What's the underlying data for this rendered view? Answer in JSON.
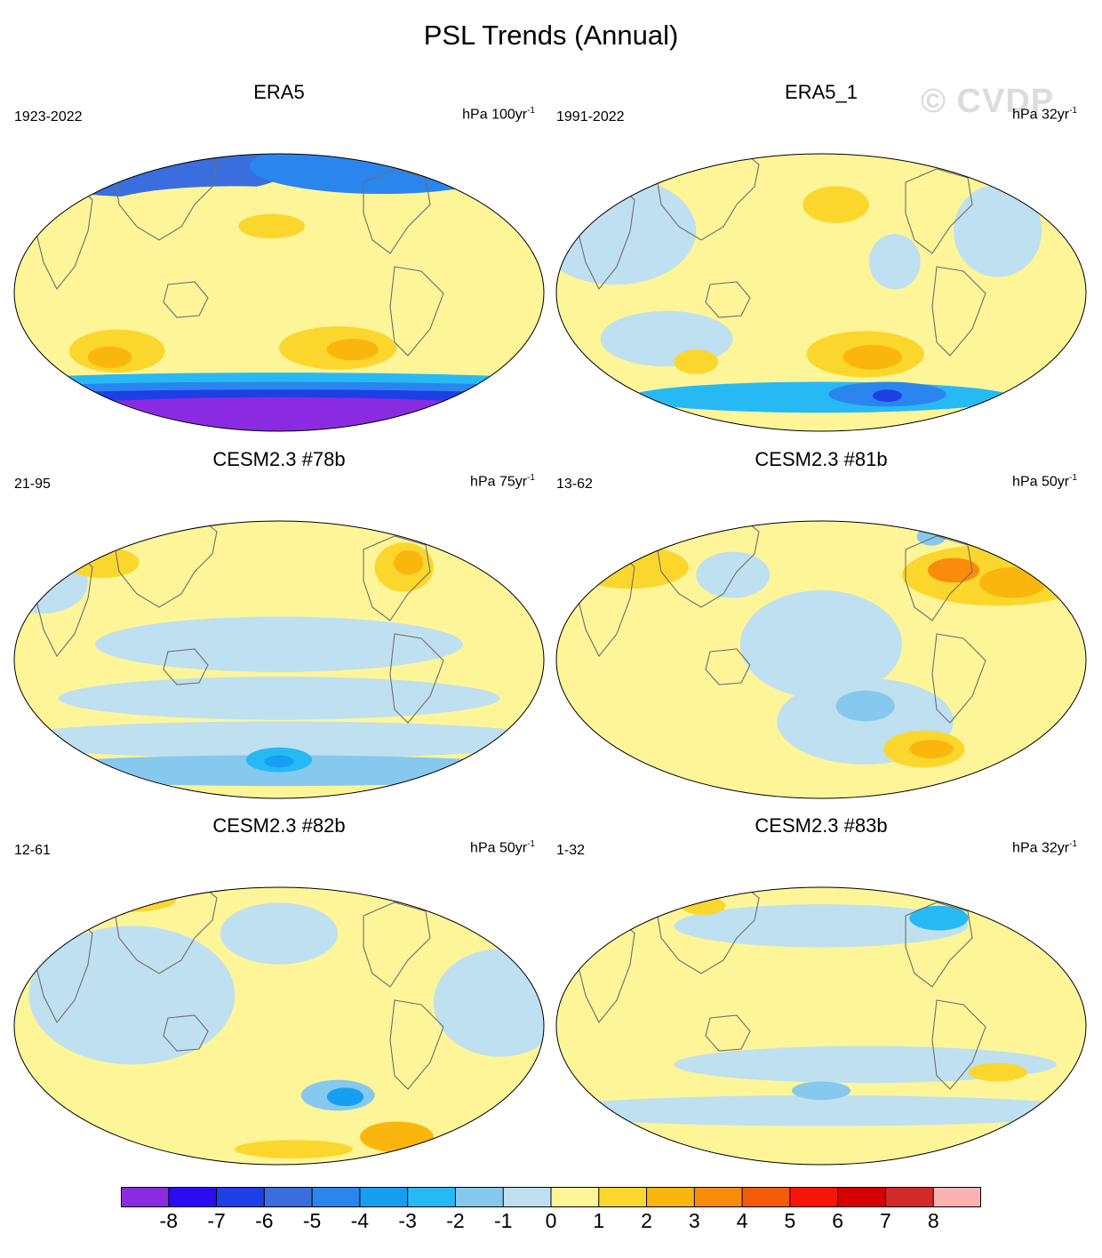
{
  "figure": {
    "title": "PSL Trends (Annual)",
    "watermark": "© CVDP"
  },
  "colors": {
    "land_outline": "#6e6e6e",
    "levels": [
      {
        "label": "-8",
        "color": "#8a2be2"
      },
      {
        "label": "-7",
        "color": "#2a0bf2"
      },
      {
        "label": "-6",
        "color": "#1f3fe6"
      },
      {
        "label": "-5",
        "color": "#3a6ede"
      },
      {
        "label": "-4",
        "color": "#2a86ee"
      },
      {
        "label": "-3",
        "color": "#169ff0"
      },
      {
        "label": "-2",
        "color": "#27b9f4"
      },
      {
        "label": "-1",
        "color": "#87c8ef"
      },
      {
        "label": "0",
        "color": "#bfe0f0"
      },
      {
        "label": "1",
        "color": "#fdf598"
      },
      {
        "label": "2",
        "color": "#fbd62d"
      },
      {
        "label": "3",
        "color": "#fbb60e"
      },
      {
        "label": "4",
        "color": "#fa8c0b"
      },
      {
        "label": "5",
        "color": "#f65b09"
      },
      {
        "label": "6",
        "color": "#fa1407"
      },
      {
        "label": "7",
        "color": "#d80000"
      },
      {
        "label": "8",
        "color": "#d22a2a"
      },
      {
        "label": "",
        "color": "#fbb2b2"
      }
    ]
  },
  "chart_data": {
    "type": "heatmap",
    "variable": "PSL",
    "colorbar_ticks": [
      "-8",
      "-7",
      "-6",
      "-5",
      "-4",
      "-3",
      "-2",
      "-1",
      "0",
      "1",
      "2",
      "3",
      "4",
      "5",
      "6",
      "7",
      "8"
    ],
    "panels": [
      {
        "title": "ERA5",
        "period": "1923-2022",
        "units": "hPa 100yr",
        "units_exp": "-1"
      },
      {
        "title": "ERA5_1",
        "period": "1991-2022",
        "units": "hPa 32yr",
        "units_exp": "-1"
      },
      {
        "title": "CESM2.3 #78b",
        "period": "21-95",
        "units": "hPa 75yr",
        "units_exp": "-1"
      },
      {
        "title": "CESM2.3 #81b",
        "period": "13-62",
        "units": "hPa 50yr",
        "units_exp": "-1"
      },
      {
        "title": "CESM2.3 #82b",
        "period": "12-61",
        "units": "hPa 50yr",
        "units_exp": "-1"
      },
      {
        "title": "CESM2.3 #83b",
        "period": "1-32",
        "units": "hPa 32yr",
        "units_exp": "-1"
      }
    ],
    "features": [
      [
        {
          "lon": 90,
          "lat": 82,
          "level": -5,
          "dlon": 200,
          "dlat": 20
        },
        {
          "lon": 250,
          "lat": 82,
          "level": -4,
          "dlon": 180,
          "dlat": 18
        },
        {
          "lon": 150,
          "lat": 55,
          "level": 1,
          "dlon": 180,
          "dlat": 14
        },
        {
          "lon": 175,
          "lat": 43,
          "level": 2,
          "dlon": 45,
          "dlat": 8
        },
        {
          "lon": 70,
          "lat": -38,
          "level": 2,
          "dlon": 65,
          "dlat": 14
        },
        {
          "lon": 65,
          "lat": -42,
          "level": 3,
          "dlon": 30,
          "dlat": 7
        },
        {
          "lon": 220,
          "lat": -36,
          "level": 2,
          "dlon": 80,
          "dlat": 14
        },
        {
          "lon": 230,
          "lat": -37,
          "level": 3,
          "dlon": 35,
          "dlat": 7
        },
        {
          "lon": 180,
          "lat": -58,
          "level": -2,
          "dlon": 380,
          "dlat": 6
        },
        {
          "lon": 180,
          "lat": -63,
          "level": -4,
          "dlon": 380,
          "dlat": 5
        },
        {
          "lon": 180,
          "lat": -68,
          "level": -6,
          "dlon": 380,
          "dlat": 5
        },
        {
          "lon": 180,
          "lat": -80,
          "level": -8,
          "dlon": 380,
          "dlat": 12
        }
      ],
      [
        {
          "lon": 40,
          "lat": 40,
          "level": 0,
          "dlon": 110,
          "dlat": 35
        },
        {
          "lon": 230,
          "lat": 20,
          "level": 0,
          "dlon": 35,
          "dlat": 18
        },
        {
          "lon": 300,
          "lat": 40,
          "level": 0,
          "dlon": 60,
          "dlat": 30
        },
        {
          "lon": 190,
          "lat": 57,
          "level": 2,
          "dlon": 45,
          "dlat": 12
        },
        {
          "lon": 75,
          "lat": -30,
          "level": 0,
          "dlon": 90,
          "dlat": 18
        },
        {
          "lon": 210,
          "lat": -40,
          "level": 2,
          "dlon": 80,
          "dlat": 15
        },
        {
          "lon": 215,
          "lat": -42,
          "level": 3,
          "dlon": 40,
          "dlat": 8
        },
        {
          "lon": 95,
          "lat": -45,
          "level": 2,
          "dlon": 30,
          "dlat": 8
        },
        {
          "lon": 180,
          "lat": -68,
          "level": -2,
          "dlon": 260,
          "dlat": 10
        },
        {
          "lon": 225,
          "lat": -66,
          "level": -4,
          "dlon": 80,
          "dlat": 8
        },
        {
          "lon": 225,
          "lat": -67,
          "level": -6,
          "dlon": 20,
          "dlat": 4
        }
      ],
      [
        {
          "lon": 180,
          "lat": 10,
          "level": 0,
          "dlon": 250,
          "dlat": 18
        },
        {
          "lon": 180,
          "lat": -25,
          "level": 0,
          "dlon": 300,
          "dlat": 14
        },
        {
          "lon": 180,
          "lat": -52,
          "level": 0,
          "dlon": 380,
          "dlat": 12
        },
        {
          "lon": 20,
          "lat": 50,
          "level": 0,
          "dlon": 60,
          "dlat": 20
        },
        {
          "lon": 60,
          "lat": 63,
          "level": 2,
          "dlon": 50,
          "dlat": 10
        },
        {
          "lon": 265,
          "lat": 60,
          "level": 2,
          "dlon": 40,
          "dlat": 16
        },
        {
          "lon": 268,
          "lat": 63,
          "level": 3,
          "dlon": 20,
          "dlat": 8
        },
        {
          "lon": 180,
          "lat": -72,
          "level": -1,
          "dlon": 380,
          "dlat": 10
        },
        {
          "lon": 180,
          "lat": -65,
          "level": -2,
          "dlon": 45,
          "dlat": 8
        },
        {
          "lon": 180,
          "lat": -66,
          "level": -3,
          "dlon": 20,
          "dlat": 4
        }
      ],
      [
        {
          "lon": 180,
          "lat": 10,
          "level": 0,
          "dlon": 110,
          "dlat": 35
        },
        {
          "lon": 210,
          "lat": -40,
          "level": 0,
          "dlon": 120,
          "dlat": 28
        },
        {
          "lon": 210,
          "lat": -30,
          "level": -1,
          "dlon": 40,
          "dlat": 10
        },
        {
          "lon": 120,
          "lat": 55,
          "level": 0,
          "dlon": 50,
          "dlat": 15
        },
        {
          "lon": 50,
          "lat": 60,
          "level": 2,
          "dlon": 80,
          "dlat": 14
        },
        {
          "lon": 300,
          "lat": 55,
          "level": 2,
          "dlon": 130,
          "dlat": 20
        },
        {
          "lon": 270,
          "lat": 58,
          "level": 4,
          "dlon": 35,
          "dlat": 8
        },
        {
          "lon": 310,
          "lat": 50,
          "level": 3,
          "dlon": 45,
          "dlat": 10
        },
        {
          "lon": 250,
          "lat": -58,
          "level": 2,
          "dlon": 55,
          "dlat": 12
        },
        {
          "lon": 255,
          "lat": -58,
          "level": 3,
          "dlon": 30,
          "dlat": 6
        },
        {
          "lon": 255,
          "lat": 80,
          "level": -1,
          "dlon": 20,
          "dlat": 6
        }
      ],
      [
        {
          "lon": 80,
          "lat": 20,
          "level": 0,
          "dlon": 140,
          "dlat": 45
        },
        {
          "lon": 180,
          "lat": 60,
          "level": 0,
          "dlon": 80,
          "dlat": 20
        },
        {
          "lon": 330,
          "lat": 15,
          "level": 0,
          "dlon": 90,
          "dlat": 35
        },
        {
          "lon": 220,
          "lat": -45,
          "level": -1,
          "dlon": 50,
          "dlat": 10
        },
        {
          "lon": 225,
          "lat": -46,
          "level": -3,
          "dlon": 25,
          "dlat": 6
        },
        {
          "lon": 180,
          "lat": -75,
          "level": 1,
          "dlon": 380,
          "dlat": 10
        },
        {
          "lon": 260,
          "lat": -72,
          "level": 3,
          "dlon": 50,
          "dlat": 10
        },
        {
          "lon": 190,
          "lat": -80,
          "level": 2,
          "dlon": 80,
          "dlat": 6
        },
        {
          "lon": 80,
          "lat": 82,
          "level": 2,
          "dlon": 60,
          "dlat": 8
        }
      ],
      [
        {
          "lon": 180,
          "lat": 65,
          "level": 0,
          "dlon": 200,
          "dlat": 14
        },
        {
          "lon": 260,
          "lat": 70,
          "level": -2,
          "dlon": 40,
          "dlat": 8
        },
        {
          "lon": 210,
          "lat": -25,
          "level": 0,
          "dlon": 260,
          "dlat": 12
        },
        {
          "lon": 180,
          "lat": -55,
          "level": 0,
          "dlon": 380,
          "dlat": 10
        },
        {
          "lon": 180,
          "lat": -42,
          "level": -1,
          "dlon": 40,
          "dlat": 6
        },
        {
          "lon": 100,
          "lat": 78,
          "level": 2,
          "dlon": 30,
          "dlat": 6
        },
        {
          "lon": 300,
          "lat": -30,
          "level": 2,
          "dlon": 40,
          "dlat": 6
        }
      ]
    ]
  }
}
